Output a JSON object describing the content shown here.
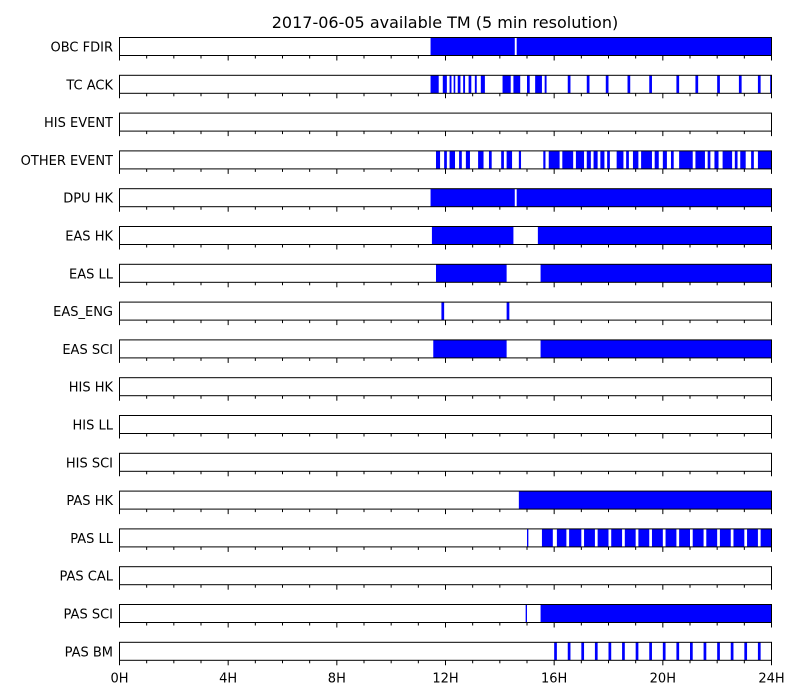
{
  "chart_data": {
    "type": "timeline",
    "title": "2017-06-05 available TM (5 min resolution)",
    "x_unit": "hour of day",
    "xlim": [
      0,
      24
    ],
    "x_ticks": [
      0,
      4,
      8,
      12,
      16,
      20,
      24
    ],
    "x_tick_labels": [
      "0H",
      "4H",
      "8H",
      "12H",
      "16H",
      "20H",
      "24H"
    ],
    "bar_color": "#0000ff",
    "rows": [
      {
        "label": "OBC FDIR",
        "segments": [
          [
            11.45,
            14.55
          ],
          [
            14.62,
            24
          ]
        ]
      },
      {
        "label": "TC ACK",
        "segments": [
          [
            11.45,
            11.75
          ],
          [
            11.9,
            12.05
          ],
          [
            12.15,
            12.22
          ],
          [
            12.3,
            12.36
          ],
          [
            12.45,
            12.55
          ],
          [
            12.65,
            12.72
          ],
          [
            12.85,
            12.95
          ],
          [
            13.08,
            13.15
          ],
          [
            13.3,
            13.45
          ],
          [
            14.1,
            14.4
          ],
          [
            14.5,
            14.75
          ],
          [
            15.0,
            15.1
          ],
          [
            15.3,
            15.55
          ],
          [
            15.65,
            15.72
          ],
          [
            16.5,
            16.6
          ],
          [
            17.2,
            17.3
          ],
          [
            17.9,
            18.0
          ],
          [
            18.7,
            18.8
          ],
          [
            19.5,
            19.6
          ],
          [
            20.5,
            20.6
          ],
          [
            21.2,
            21.3
          ],
          [
            22.0,
            22.1
          ],
          [
            22.8,
            22.9
          ],
          [
            23.5,
            23.6
          ],
          [
            23.95,
            24.0
          ]
        ]
      },
      {
        "label": "HIS EVENT",
        "segments": []
      },
      {
        "label": "OTHER EVENT",
        "segments": [
          [
            11.65,
            11.8
          ],
          [
            11.95,
            12.05
          ],
          [
            12.15,
            12.35
          ],
          [
            12.5,
            12.6
          ],
          [
            12.75,
            12.9
          ],
          [
            13.2,
            13.4
          ],
          [
            13.6,
            13.7
          ],
          [
            14.05,
            14.15
          ],
          [
            14.25,
            14.45
          ],
          [
            14.7,
            14.78
          ],
          [
            15.6,
            15.68
          ],
          [
            15.8,
            16.2
          ],
          [
            16.3,
            16.7
          ],
          [
            16.8,
            17.1
          ],
          [
            17.2,
            17.35
          ],
          [
            17.45,
            17.6
          ],
          [
            17.7,
            17.85
          ],
          [
            17.95,
            18.05
          ],
          [
            18.3,
            18.55
          ],
          [
            18.65,
            18.75
          ],
          [
            18.9,
            19.1
          ],
          [
            19.2,
            19.6
          ],
          [
            19.7,
            19.85
          ],
          [
            20.0,
            20.15
          ],
          [
            20.3,
            20.4
          ],
          [
            20.6,
            21.1
          ],
          [
            21.2,
            21.55
          ],
          [
            21.65,
            21.75
          ],
          [
            21.9,
            22.05
          ],
          [
            22.2,
            22.55
          ],
          [
            22.65,
            22.75
          ],
          [
            22.85,
            23.05
          ],
          [
            23.25,
            23.35
          ],
          [
            23.5,
            24.0
          ]
        ]
      },
      {
        "label": "DPU HK",
        "segments": [
          [
            11.45,
            14.55
          ],
          [
            14.62,
            24
          ]
        ]
      },
      {
        "label": "EAS HK",
        "segments": [
          [
            11.5,
            14.5
          ],
          [
            15.4,
            24
          ]
        ]
      },
      {
        "label": "EAS LL",
        "segments": [
          [
            11.65,
            14.25
          ],
          [
            15.5,
            24
          ]
        ]
      },
      {
        "label": "EAS_ENG",
        "segments": [
          [
            11.85,
            11.95
          ],
          [
            14.25,
            14.35
          ]
        ]
      },
      {
        "label": "EAS SCI",
        "segments": [
          [
            11.55,
            14.25
          ],
          [
            15.5,
            24
          ]
        ]
      },
      {
        "label": "HIS HK",
        "segments": []
      },
      {
        "label": "HIS LL",
        "segments": []
      },
      {
        "label": "HIS SCI",
        "segments": []
      },
      {
        "label": "PAS HK",
        "segments": [
          [
            14.7,
            24
          ]
        ]
      },
      {
        "label": "PAS LL",
        "segments": [
          [
            15.0,
            15.05
          ],
          [
            15.55,
            15.95
          ],
          [
            16.1,
            16.45
          ],
          [
            16.55,
            17.0
          ],
          [
            17.1,
            17.5
          ],
          [
            17.6,
            18.0
          ],
          [
            18.1,
            18.5
          ],
          [
            18.6,
            19.0
          ],
          [
            19.1,
            19.5
          ],
          [
            19.6,
            20.0
          ],
          [
            20.1,
            20.5
          ],
          [
            20.6,
            21.0
          ],
          [
            21.1,
            21.5
          ],
          [
            21.6,
            22.0
          ],
          [
            22.1,
            22.5
          ],
          [
            22.6,
            23.0
          ],
          [
            23.1,
            23.5
          ],
          [
            23.6,
            24.0
          ]
        ]
      },
      {
        "label": "PAS CAL",
        "segments": []
      },
      {
        "label": "PAS SCI",
        "segments": [
          [
            14.95,
            15.0
          ],
          [
            15.5,
            24
          ]
        ]
      },
      {
        "label": "PAS BM",
        "segments": [
          [
            16.0,
            16.1
          ],
          [
            16.5,
            16.6
          ],
          [
            17.0,
            17.1
          ],
          [
            17.5,
            17.6
          ],
          [
            18.0,
            18.1
          ],
          [
            18.5,
            18.6
          ],
          [
            19.0,
            19.1
          ],
          [
            19.5,
            19.6
          ],
          [
            20.0,
            20.1
          ],
          [
            20.5,
            20.6
          ],
          [
            21.0,
            21.1
          ],
          [
            21.5,
            21.6
          ],
          [
            22.0,
            22.1
          ],
          [
            22.5,
            22.6
          ],
          [
            23.0,
            23.1
          ],
          [
            23.5,
            23.6
          ]
        ]
      }
    ]
  }
}
